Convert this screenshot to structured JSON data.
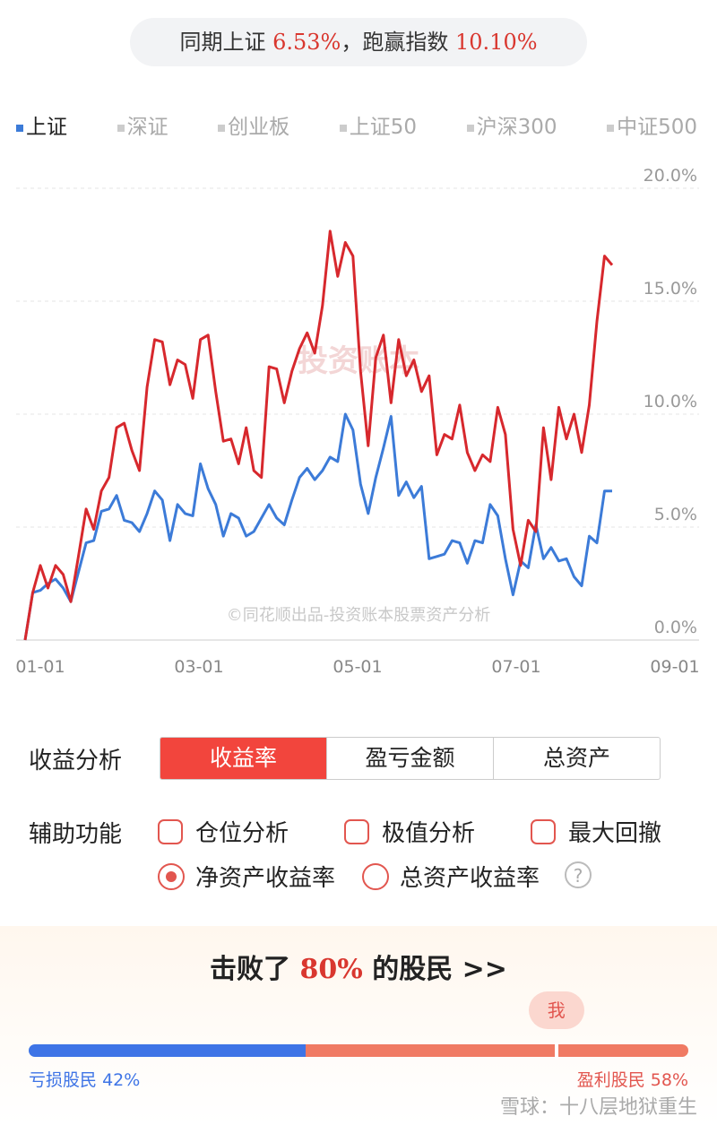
{
  "summary": {
    "prefix": "同期上证",
    "index_return": "6.53%",
    "middle": "，跑赢指数",
    "excess_return": "10.10%"
  },
  "index_tabs": [
    "上证",
    "深证",
    "创业板",
    "上证50",
    "沪深300",
    "中证500"
  ],
  "chart_data": {
    "type": "line",
    "watermark": "投资账本",
    "credit": "©同花顺出品-投资账本股票资产分析",
    "xticks": [
      "01-01",
      "03-01",
      "05-01",
      "07-01",
      "09-01"
    ],
    "ylim": [
      0,
      20
    ],
    "yticks": [
      {
        "value": 0,
        "label": "0.0%"
      },
      {
        "value": 5,
        "label": "5.0%"
      },
      {
        "value": 10,
        "label": "10.0%"
      },
      {
        "value": 15,
        "label": "15.0%"
      },
      {
        "value": 20,
        "label": "20.0%"
      }
    ],
    "grid": true,
    "series": [
      {
        "name": "收益率",
        "color": "#d7282d",
        "values": [
          0,
          2.1,
          3.3,
          2.3,
          3.3,
          2.9,
          1.7,
          3.7,
          5.8,
          4.9,
          6.6,
          7.2,
          9.4,
          9.6,
          8.4,
          7.5,
          11.2,
          13.3,
          13.2,
          11.3,
          12.4,
          12.2,
          10.7,
          13.3,
          13.5,
          11.0,
          8.8,
          8.9,
          7.8,
          9.4,
          7.5,
          7.2,
          12.1,
          12.0,
          10.5,
          11.9,
          12.9,
          13.6,
          12.7,
          14.8,
          18.1,
          16.1,
          17.6,
          17.0,
          11.9,
          8.6,
          12.5,
          13.5,
          10.5,
          13.3,
          11.7,
          12.4,
          11.0,
          11.7,
          8.2,
          9.1,
          8.9,
          10.4,
          8.3,
          7.5,
          8.2,
          7.9,
          10.3,
          9.1,
          4.9,
          3.3,
          5.3,
          4.8,
          9.4,
          7.1,
          10.3,
          8.9,
          10.0,
          8.3,
          10.4,
          14.1,
          17.0,
          16.6
        ]
      },
      {
        "name": "上证",
        "color": "#3c7bd8",
        "values": [
          0,
          2.1,
          2.2,
          2.5,
          2.7,
          2.3,
          1.7,
          3.0,
          4.3,
          4.4,
          5.7,
          5.8,
          6.4,
          5.3,
          5.2,
          4.8,
          5.6,
          6.6,
          6.2,
          4.4,
          6.0,
          5.6,
          5.5,
          7.8,
          6.7,
          6.0,
          4.6,
          5.6,
          5.4,
          4.6,
          4.8,
          5.4,
          6.0,
          5.4,
          5.1,
          6.2,
          7.2,
          7.6,
          7.1,
          7.5,
          8.1,
          7.9,
          10.0,
          9.3,
          6.9,
          5.6,
          7.2,
          8.5,
          9.9,
          6.4,
          7.0,
          6.3,
          6.8,
          3.6,
          3.7,
          3.8,
          4.4,
          4.3,
          3.4,
          4.4,
          4.3,
          6.0,
          5.5,
          3.6,
          2.0,
          3.5,
          3.2,
          5.1,
          3.6,
          4.1,
          3.5,
          3.6,
          2.8,
          2.4,
          4.6,
          4.3,
          6.6,
          6.6
        ]
      }
    ]
  },
  "analysis": {
    "label": "收益分析",
    "tabs": [
      "收益率",
      "盈亏金额",
      "总资产"
    ]
  },
  "aux": {
    "label": "辅助功能",
    "checkboxes": [
      "仓位分析",
      "极值分析",
      "最大回撤"
    ],
    "radios": [
      "净资产收益率",
      "总资产收益率"
    ],
    "help": "?"
  },
  "rank": {
    "prefix": "击败了",
    "percent": 80,
    "percent_label": "80%",
    "suffix": "的股民",
    "more": ">>",
    "me": "我",
    "loss": {
      "label": "亏损股民",
      "value": 42,
      "value_label": "42%"
    },
    "profit": {
      "label": "盈利股民",
      "value": 58,
      "value_label": "58%"
    }
  },
  "footer_watermark": "雪球：十八层地狱重生"
}
